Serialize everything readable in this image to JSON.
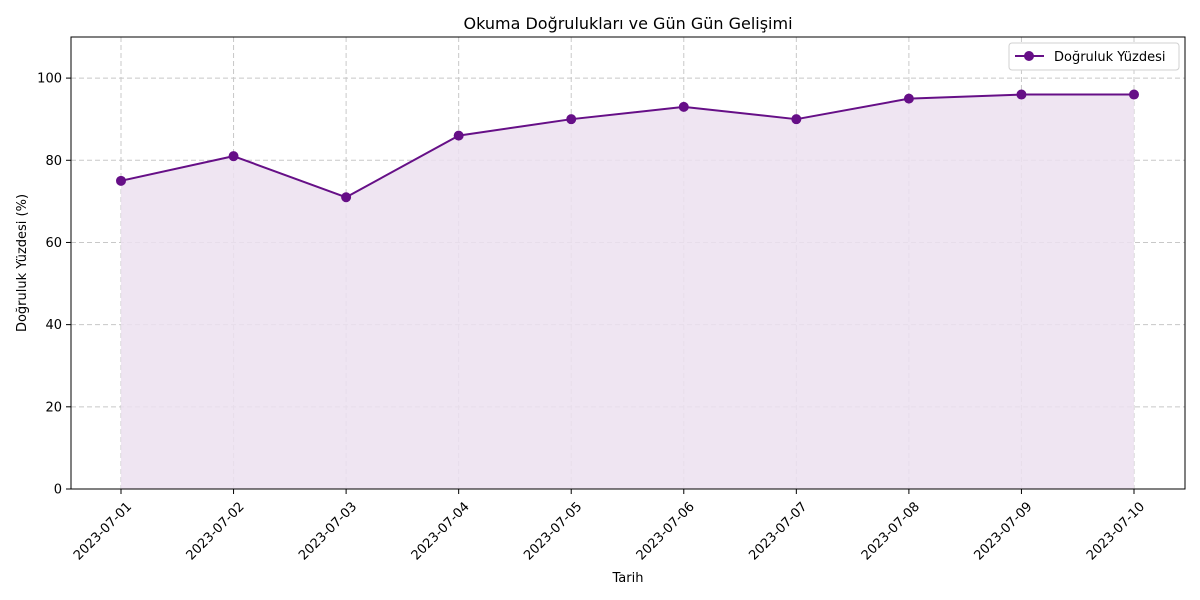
{
  "chart_data": {
    "type": "area",
    "title": "Okuma Doğrulukları ve Gün Gün Gelişimi",
    "xlabel": "Tarih",
    "ylabel": "Doğruluk Yüzdesi (%)",
    "categories": [
      "2023-07-01",
      "2023-07-02",
      "2023-07-03",
      "2023-07-04",
      "2023-07-05",
      "2023-07-06",
      "2023-07-07",
      "2023-07-08",
      "2023-07-09",
      "2023-07-10"
    ],
    "series": [
      {
        "name": "Doğruluk Yüzdesi",
        "values": [
          75,
          81,
          71,
          86,
          90,
          93,
          90,
          95,
          96,
          96
        ],
        "color": "#660f87",
        "fill_color": "#ece0f0"
      }
    ],
    "ylim": [
      0,
      110
    ],
    "yticks": [
      0,
      20,
      40,
      60,
      80,
      100
    ],
    "grid": true,
    "legend": "top-right",
    "marker": "circle"
  }
}
